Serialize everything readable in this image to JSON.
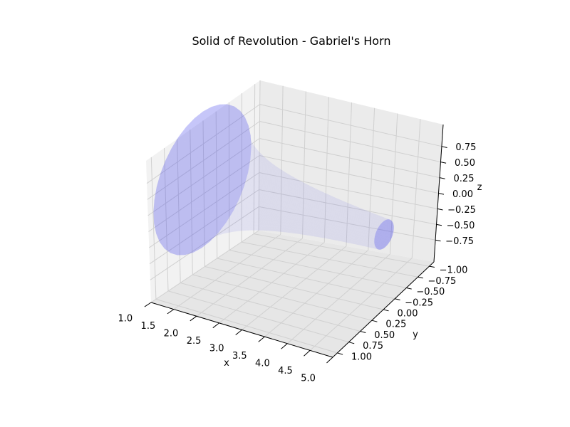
{
  "chart_data": {
    "type": "surface3d",
    "title": "Solid of Revolution - Gabriel's Horn",
    "xlabel": "x",
    "ylabel": "y",
    "zlabel": "z",
    "function": "radius = 1/x, revolved about the x-axis",
    "x_range": [
      1,
      5
    ],
    "grid": true,
    "surface_color": "#4d4ded",
    "x_ticks": [
      "1.0",
      "1.5",
      "2.0",
      "2.5",
      "3.0",
      "3.5",
      "4.0",
      "4.5",
      "5.0"
    ],
    "y_ticks": [
      "−1.00",
      "−0.75",
      "−0.50",
      "−0.25",
      "0.00",
      "0.25",
      "0.50",
      "0.75",
      "1.00"
    ],
    "z_ticks": [
      "−0.75",
      "−0.50",
      "−0.25",
      "0.00",
      "0.25",
      "0.50",
      "0.75"
    ]
  }
}
